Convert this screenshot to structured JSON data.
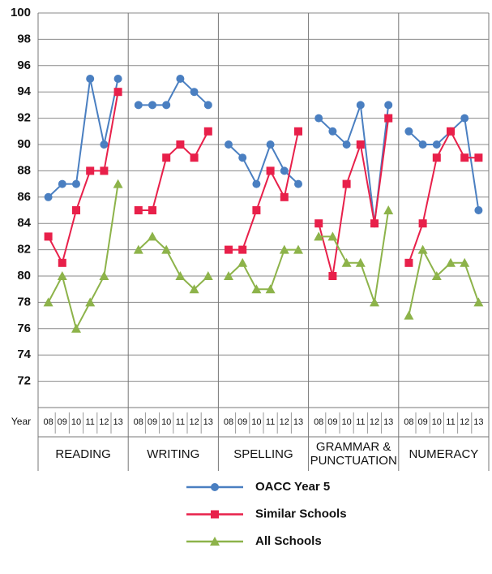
{
  "chart_data": {
    "type": "line",
    "x_label": "Year",
    "groups": [
      "READING",
      "WRITING",
      "SPELLING",
      "GRAMMAR & PUNCTUATION",
      "NUMERACY"
    ],
    "categories": [
      "08",
      "09",
      "10",
      "11",
      "12",
      "13",
      "08",
      "09",
      "10",
      "11",
      "12",
      "13",
      "08",
      "09",
      "10",
      "11",
      "12",
      "13",
      "08",
      "09",
      "10",
      "11",
      "12",
      "13",
      "08",
      "09",
      "10",
      "11",
      "12",
      "13"
    ],
    "ylim": [
      70,
      100
    ],
    "yticks": [
      72,
      74,
      76,
      78,
      80,
      82,
      84,
      86,
      88,
      90,
      92,
      94,
      96,
      98,
      100
    ],
    "grid": true,
    "legend": "bottom",
    "series": [
      {
        "name": "OACC Year 5",
        "color": "#4a7fc1",
        "marker": "circle",
        "values": [
          86,
          87,
          87,
          95,
          90,
          95,
          93,
          93,
          93,
          95,
          94,
          93,
          90,
          89,
          87,
          90,
          88,
          87,
          92,
          91,
          90,
          93,
          84,
          93,
          91,
          90,
          90,
          91,
          92,
          85
        ]
      },
      {
        "name": "Similar Schools",
        "color": "#e8204a",
        "marker": "square",
        "values": [
          83,
          81,
          85,
          88,
          88,
          94,
          85,
          85,
          89,
          90,
          89,
          91,
          82,
          82,
          85,
          88,
          86,
          91,
          84,
          80,
          87,
          90,
          84,
          92,
          81,
          84,
          89,
          91,
          89,
          89
        ]
      },
      {
        "name": "All Schools",
        "color": "#8db34a",
        "marker": "triangle",
        "values": [
          78,
          80,
          76,
          78,
          80,
          87,
          82,
          83,
          82,
          80,
          79,
          80,
          80,
          81,
          79,
          79,
          82,
          82,
          83,
          83,
          81,
          81,
          78,
          85,
          77,
          82,
          80,
          81,
          81,
          78
        ]
      }
    ]
  }
}
